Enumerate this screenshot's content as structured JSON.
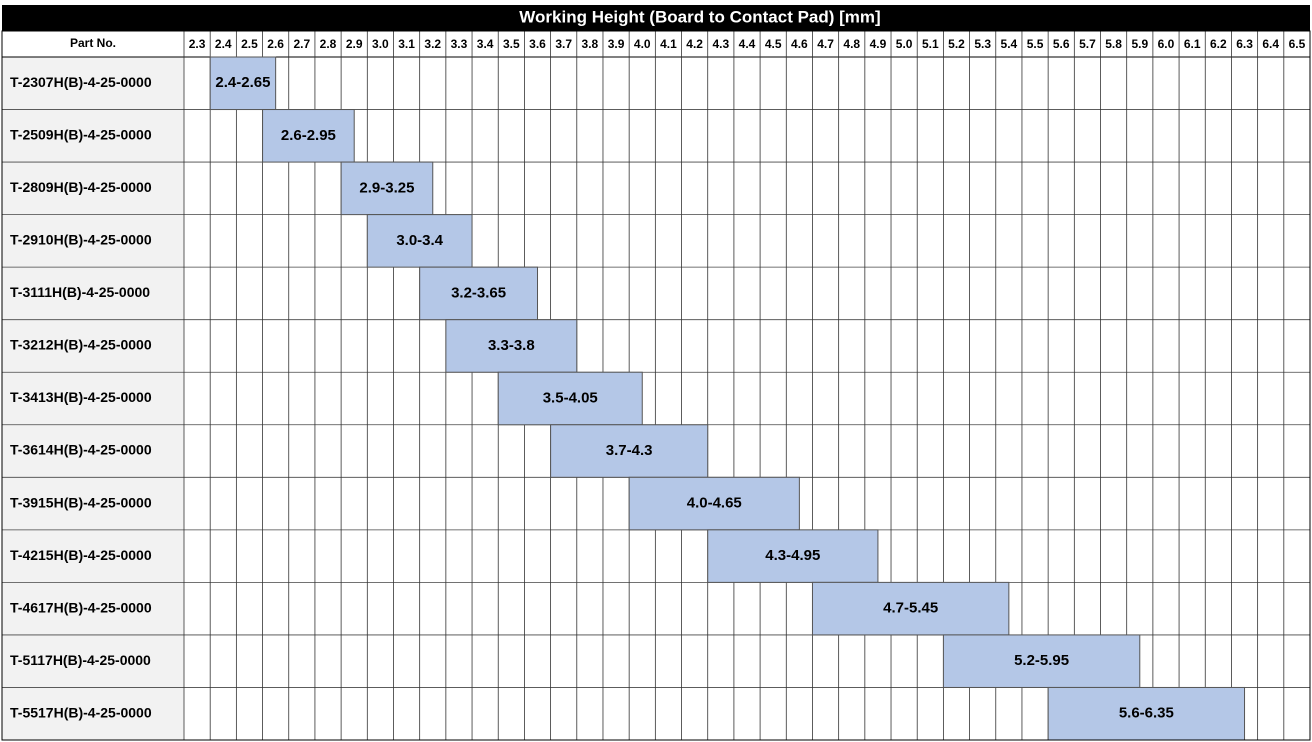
{
  "chart_data": {
    "type": "gantt",
    "title": "Working Height (Board to Contact Pad) [mm]",
    "category_label": "Part No.",
    "categories": [
      "T-2307H(B)-4-25-0000",
      "T-2509H(B)-4-25-0000",
      "T-2809H(B)-4-25-0000",
      "T-2910H(B)-4-25-0000",
      "T-3111H(B)-4-25-0000",
      "T-3212H(B)-4-25-0000",
      "T-3413H(B)-4-25-0000",
      "T-3614H(B)-4-25-0000",
      "T-3915H(B)-4-25-0000",
      "T-4215H(B)-4-25-0000",
      "T-4617H(B)-4-25-0000",
      "T-5117H(B)-4-25-0000",
      "T-5517H(B)-4-25-0000"
    ],
    "starts": [
      2.4,
      2.6,
      2.9,
      3.0,
      3.2,
      3.3,
      3.5,
      3.7,
      4.0,
      4.3,
      4.7,
      5.2,
      5.6
    ],
    "ends": [
      2.65,
      2.95,
      3.25,
      3.4,
      3.65,
      3.8,
      4.05,
      4.3,
      4.65,
      4.95,
      5.45,
      5.95,
      6.35
    ],
    "value_labels": [
      "2.4-2.65",
      "2.6-2.95",
      "2.9-3.25",
      "3.0-3.4",
      "3.2-3.65",
      "3.3-3.8",
      "3.5-4.05",
      "3.7-4.3",
      "4.0-4.65",
      "4.3-4.95",
      "4.7-5.45",
      "5.2-5.95",
      "5.6-6.35"
    ],
    "color": "#b4c7e7",
    "xlim": [
      2.3,
      6.6
    ],
    "xticks": [
      2.3,
      2.4,
      2.5,
      2.6,
      2.7,
      2.8,
      2.9,
      {
        "value": 3,
        "label": "3.0"
      },
      3.1,
      3.2,
      3.3,
      3.4,
      3.5,
      3.6,
      3.7,
      3.8,
      3.9,
      {
        "value": 4,
        "label": "4.0"
      },
      4.1,
      4.2,
      4.3,
      4.4,
      4.5,
      4.6,
      4.7,
      4.8,
      4.9,
      {
        "value": 5,
        "label": "5.0"
      },
      5.1,
      5.2,
      5.3,
      5.4,
      5.5,
      5.6,
      5.7,
      5.8,
      5.9,
      {
        "value": 6,
        "label": "6.0"
      },
      6.1,
      6.2,
      6.3,
      6.4,
      6.5
    ],
    "grid": true
  }
}
